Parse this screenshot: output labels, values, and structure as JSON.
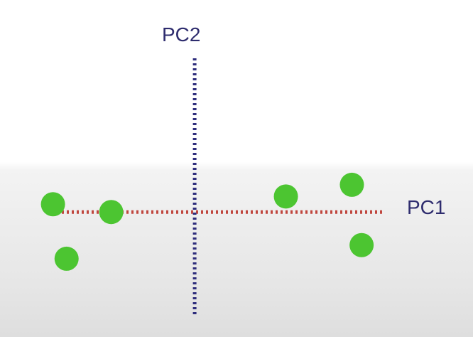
{
  "colors": {
    "pc1_axis": "#c0473f",
    "pc2_axis": "#2e2d7c",
    "point": "#4cc531",
    "label": "#2e2c6e"
  },
  "chart_data": {
    "type": "scatter",
    "xlabel": "PC1",
    "ylabel": "PC2",
    "xlim": [
      -8.2,
      10.9
    ],
    "ylim": [
      -5.4,
      9.8
    ],
    "grid": false,
    "axis_style": "dotted",
    "series": [
      {
        "points": [
          {
            "x": -7.3,
            "y": 0.4
          },
          {
            "x": -4.3,
            "y": 0.0
          },
          {
            "x": -6.6,
            "y": -2.4
          },
          {
            "x": 4.7,
            "y": 0.8
          },
          {
            "x": 8.1,
            "y": 1.4
          },
          {
            "x": 8.6,
            "y": -1.7
          }
        ]
      }
    ]
  }
}
